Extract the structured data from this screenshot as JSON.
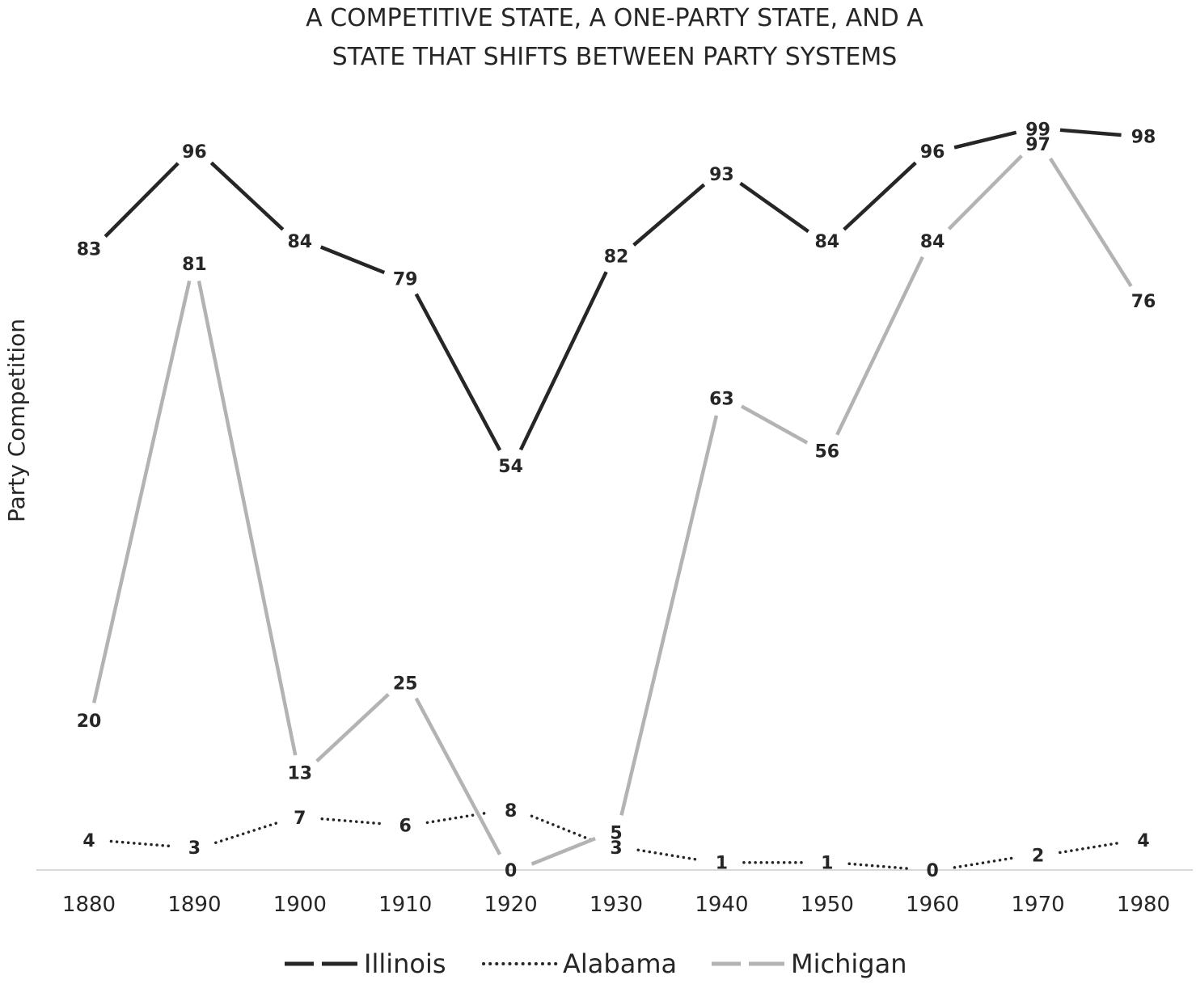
{
  "chart_data": {
    "type": "line",
    "title_lines": [
      "A COMPETITIVE STATE, A ONE-PARTY STATE, AND A",
      "STATE THAT SHIFTS BETWEEN PARTY SYSTEMS"
    ],
    "xlabel": "",
    "ylabel": "Party Competition",
    "x": [
      "1880",
      "1890",
      "1900",
      "1910",
      "1920",
      "1930",
      "1940",
      "1950",
      "1960",
      "1970",
      "1980"
    ],
    "ylim": [
      0,
      100
    ],
    "grid": false,
    "legend_position": "bottom",
    "series": [
      {
        "name": "Illinois",
        "style": "solid",
        "color": "#262626",
        "values": [
          83,
          96,
          84,
          79,
          54,
          82,
          93,
          84,
          96,
          99,
          98
        ]
      },
      {
        "name": "Alabama",
        "style": "dotted",
        "color": "#262626",
        "values": [
          4,
          3,
          7,
          6,
          8,
          3,
          1,
          1,
          0,
          2,
          4
        ]
      },
      {
        "name": "Michigan",
        "style": "solid",
        "color": "#b3b3b3",
        "values": [
          20,
          81,
          13,
          25,
          0,
          5,
          63,
          56,
          84,
          97,
          76
        ]
      }
    ]
  }
}
